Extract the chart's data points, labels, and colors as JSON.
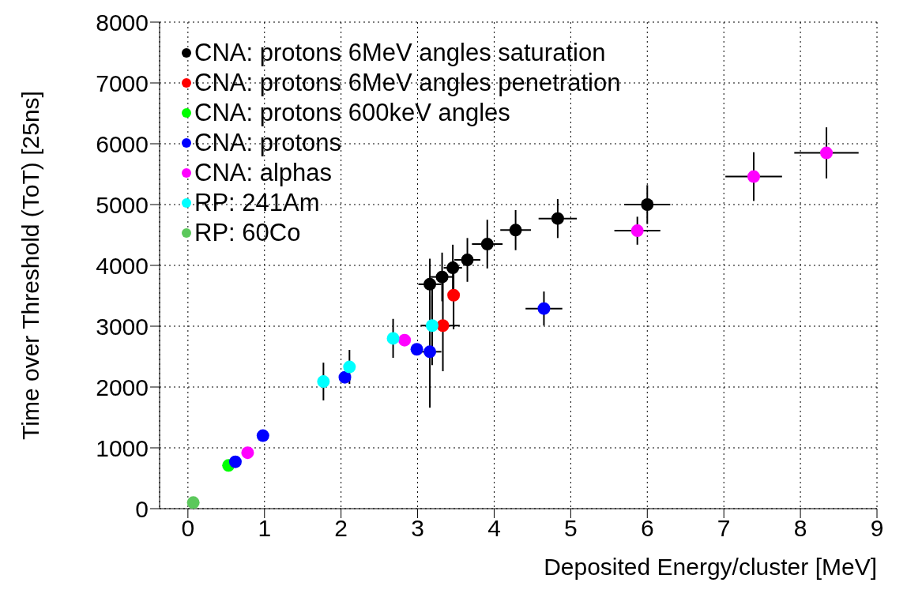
{
  "chart_data": {
    "type": "scatter",
    "xlabel": "Deposited Energy/cluster [MeV]",
    "ylabel": "Time over Threshold (ToT) [25ns]",
    "xlim": [
      -0.37,
      9
    ],
    "xticks": [
      0,
      1,
      2,
      3,
      4,
      5,
      6,
      7,
      8,
      9
    ],
    "ylim": [
      0,
      8000
    ],
    "yticks": [
      0,
      1000,
      2000,
      3000,
      4000,
      5000,
      6000,
      7000,
      8000
    ],
    "grid": true,
    "legend": "top left",
    "marker": "circle",
    "series": [
      {
        "name": "CNA: protons 6MeV angles saturation",
        "color": "#000000",
        "x": [
          3.16,
          3.32,
          3.46,
          3.65,
          3.91,
          4.28,
          4.83,
          6.0
        ],
        "values": [
          3690,
          3810,
          3960,
          4090,
          4350,
          4580,
          4770,
          5000
        ],
        "errors": [
          420,
          400,
          380,
          360,
          400,
          330,
          320,
          320
        ],
        "xerrors": [
          0.15,
          0.15,
          0.12,
          0.17,
          0.2,
          0.2,
          0.25,
          0.3
        ]
      },
      {
        "name": "CNA: protons 6MeV angles penetration",
        "color": "#ff0000",
        "x": [
          3.33,
          3.47
        ],
        "values": [
          3010,
          3510
        ],
        "errors": [
          750,
          560
        ],
        "xerrors": [
          0.22,
          null
        ]
      },
      {
        "name": "CNA: protons 600keV angles",
        "color": "#00ff00",
        "x": [
          0.53
        ],
        "values": [
          710
        ]
      },
      {
        "name": "CNA: protons",
        "color": "#0000ff",
        "x": [
          0.62,
          0.98,
          2.05,
          2.99,
          3.16,
          4.65
        ],
        "values": [
          770,
          1200,
          2160,
          2620,
          2580,
          3290
        ],
        "errors": [
          null,
          null,
          null,
          null,
          920,
          280
        ],
        "xerrors": [
          null,
          null,
          null,
          null,
          0.15,
          0.24
        ]
      },
      {
        "name": "CNA: alphas",
        "color": "#ff00ff",
        "x": [
          0.78,
          2.83,
          5.87,
          7.39,
          8.34
        ],
        "values": [
          920,
          2770,
          4570,
          5460,
          5850
        ],
        "errors": [
          null,
          null,
          230,
          400,
          420
        ],
        "xerrors": [
          null,
          null,
          0.3,
          0.37,
          0.42
        ]
      },
      {
        "name": "RP: 241Am",
        "color": "#00ffff",
        "x": [
          1.77,
          2.11,
          2.68,
          3.19
        ],
        "values": [
          2090,
          2330,
          2800,
          3010
        ],
        "errors": [
          310,
          280,
          320,
          650
        ],
        "xerrors": [
          null,
          null,
          null,
          0.15
        ]
      },
      {
        "name": "RP: 60Co",
        "color": "#5cc85c",
        "x": [
          0.07
        ],
        "values": [
          100
        ]
      }
    ]
  }
}
